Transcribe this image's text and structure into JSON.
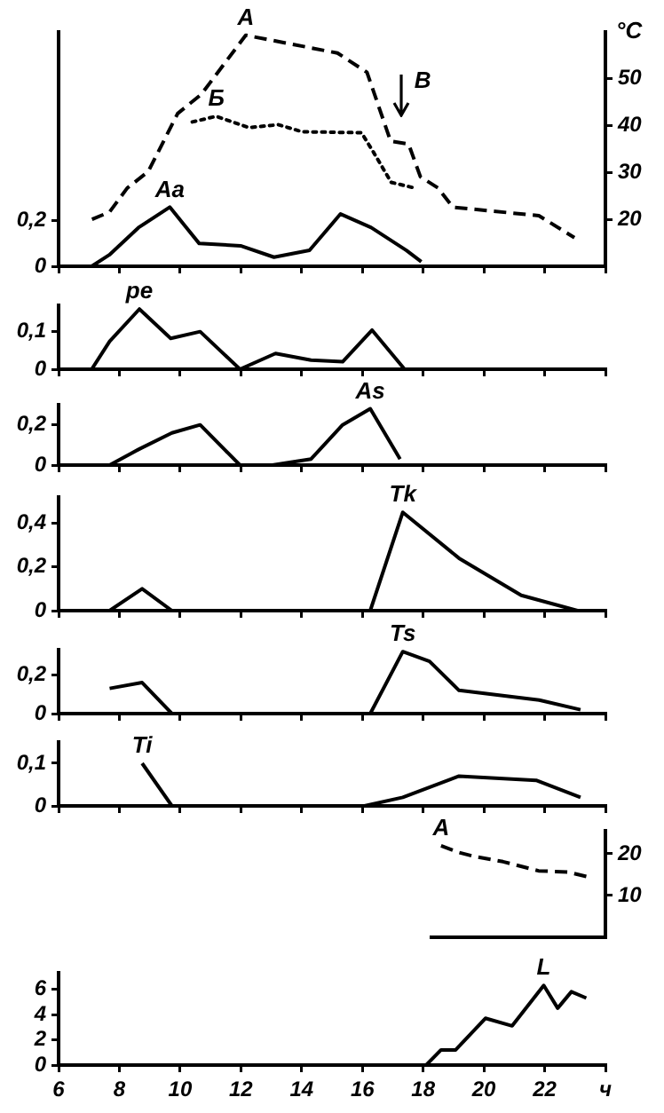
{
  "chart_data": [
    {
      "type": "line",
      "xlim": [
        6,
        24
      ],
      "xticks": [
        {
          "value": 6,
          "label": null
        },
        {
          "value": 8,
          "label": null
        },
        {
          "value": 10,
          "label": null
        },
        {
          "value": 12,
          "label": null
        },
        {
          "value": 14,
          "label": null
        },
        {
          "value": 16,
          "label": null
        },
        {
          "value": 18,
          "label": null
        },
        {
          "value": 20,
          "label": null
        },
        {
          "value": 22,
          "label": null
        },
        {
          "value": 24,
          "label": null
        }
      ],
      "ylim": [
        0,
        1.03
      ],
      "yticks": [
        0,
        {
          "value": 0.2,
          "label": "0,2"
        }
      ],
      "y2lim": [
        10,
        60
      ],
      "y2ticks": [
        20,
        30,
        40,
        50
      ],
      "y2label": "°C",
      "tick_labels": "y",
      "annotations": [
        "В"
      ],
      "series": [
        {
          "name": "A",
          "color": "#000000",
          "axis": "y2",
          "line_style": "dashed",
          "x": [
            7.1,
            7.68,
            8.26,
            8.95,
            9.92,
            10.7,
            12.16,
            15.18,
            16.15,
            16.93,
            17.52,
            17.91,
            18.49,
            18.98,
            21.81,
            22.98
          ],
          "values": [
            20,
            21.6,
            26.7,
            30.2,
            42.6,
            46.7,
            59.3,
            55.5,
            51.4,
            36.7,
            36.1,
            29.1,
            26.7,
            22.6,
            20.8,
            16.1
          ]
        },
        {
          "name": "Б",
          "color": "#000000",
          "axis": "y2",
          "line_style": "dotted",
          "x": [
            10.4,
            11.19,
            12.26,
            13.24,
            14.02,
            15.97,
            16.36,
            16.95,
            17.72
          ],
          "values": [
            40.8,
            42,
            39.6,
            40.2,
            38.7,
            38.5,
            34.4,
            27.9,
            26.7
          ]
        },
        {
          "name": "Aa",
          "color": "#000000",
          "x": [
            7.09,
            7.67,
            8.63,
            9.66,
            10.63,
            11.99,
            13.09,
            14.26,
            15.28,
            16.29,
            17.45,
            17.94
          ],
          "values": [
            0,
            0.05,
            0.17,
            0.26,
            0.1,
            0.09,
            0.04,
            0.07,
            0.23,
            0.17,
            0.07,
            0.02
          ]
        }
      ]
    },
    {
      "type": "line",
      "xlim": [
        6,
        24
      ],
      "xticks": [
        {
          "value": 6,
          "label": null
        },
        {
          "value": 8,
          "label": null
        },
        {
          "value": 10,
          "label": null
        },
        {
          "value": 12,
          "label": null
        },
        {
          "value": 14,
          "label": null
        },
        {
          "value": 16,
          "label": null
        },
        {
          "value": 18,
          "label": null
        },
        {
          "value": 20,
          "label": null
        },
        {
          "value": 22,
          "label": null
        },
        {
          "value": 24,
          "label": null
        }
      ],
      "ylim": [
        0,
        0.17
      ],
      "yticks": [
        0,
        {
          "value": 0.1,
          "label": "0,1"
        }
      ],
      "tick_labels": "y",
      "series": [
        {
          "name": "pe",
          "color": "#000000",
          "x": [
            7.09,
            7.68,
            8.66,
            9.69,
            10.66,
            11.97,
            13.14,
            14.31,
            15.35,
            16.32,
            17.39
          ],
          "values": [
            0,
            0.074,
            0.16,
            0.082,
            0.1,
            0,
            0.042,
            0.024,
            0.02,
            0.104,
            0
          ]
        }
      ]
    },
    {
      "type": "line",
      "xlim": [
        6,
        24
      ],
      "xticks": [
        {
          "value": 6,
          "label": null
        },
        {
          "value": 8,
          "label": null
        },
        {
          "value": 10,
          "label": null
        },
        {
          "value": 12,
          "label": null
        },
        {
          "value": 14,
          "label": null
        },
        {
          "value": 16,
          "label": null
        },
        {
          "value": 18,
          "label": null
        },
        {
          "value": 20,
          "label": null
        },
        {
          "value": 22,
          "label": null
        },
        {
          "value": 24,
          "label": null
        }
      ],
      "ylim": [
        0,
        0.3
      ],
      "yticks": [
        0,
        {
          "value": 0.2,
          "label": "0,2"
        }
      ],
      "tick_labels": "y",
      "series": [
        {
          "name": "As",
          "color": "#000000",
          "x": [
            7.68,
            8.66,
            9.73,
            10.66,
            11.97,
            12.5,
            13.04,
            14.31,
            15.35,
            16.26,
            17.24
          ],
          "values": [
            0,
            0.08,
            0.16,
            0.2,
            0,
            null,
            0,
            0.03,
            0.2,
            0.28,
            0.03
          ]
        }
      ]
    },
    {
      "type": "line",
      "xlim": [
        6,
        24
      ],
      "xticks": [
        {
          "value": 6,
          "label": null
        },
        {
          "value": 8,
          "label": null
        },
        {
          "value": 10,
          "label": null
        },
        {
          "value": 12,
          "label": null
        },
        {
          "value": 14,
          "label": null
        },
        {
          "value": 16,
          "label": null
        },
        {
          "value": 18,
          "label": null
        },
        {
          "value": 20,
          "label": null
        },
        {
          "value": 22,
          "label": null
        },
        {
          "value": 24,
          "label": null
        }
      ],
      "ylim": [
        0,
        0.52
      ],
      "yticks": [
        0,
        {
          "value": 0.2,
          "label": "0,2"
        },
        {
          "value": 0.4,
          "label": "0,4"
        }
      ],
      "tick_labels": "y",
      "series": [
        {
          "name": "Tk",
          "color": "#000000",
          "x": [
            7.68,
            8.75,
            9.73,
            13,
            16.26,
            17.33,
            19.18,
            21.23,
            23.08
          ],
          "values": [
            0,
            0.1,
            0,
            null,
            0,
            0.45,
            0.24,
            0.07,
            0
          ]
        }
      ]
    },
    {
      "type": "line",
      "xlim": [
        6,
        24
      ],
      "xticks": [
        {
          "value": 6,
          "label": null
        },
        {
          "value": 8,
          "label": null
        },
        {
          "value": 10,
          "label": null
        },
        {
          "value": 12,
          "label": null
        },
        {
          "value": 14,
          "label": null
        },
        {
          "value": 16,
          "label": null
        },
        {
          "value": 18,
          "label": null
        },
        {
          "value": 20,
          "label": null
        },
        {
          "value": 22,
          "label": null
        },
        {
          "value": 24,
          "label": null
        }
      ],
      "ylim": [
        0,
        0.33
      ],
      "yticks": [
        0,
        {
          "value": 0.2,
          "label": "0,2"
        }
      ],
      "tick_labels": "y",
      "series": [
        {
          "name": "Ts",
          "color": "#000000",
          "x": [
            7.68,
            8.75,
            9.73,
            13,
            16.26,
            17.33,
            18.21,
            19.18,
            21.82,
            23.18
          ],
          "values": [
            0.13,
            0.16,
            0,
            null,
            0,
            0.32,
            0.27,
            0.12,
            0.07,
            0.02
          ]
        }
      ]
    },
    {
      "type": "line",
      "xlim": [
        6,
        24
      ],
      "xticks": [
        {
          "value": 6,
          "label": null
        },
        {
          "value": 8,
          "label": null
        },
        {
          "value": 10,
          "label": null
        },
        {
          "value": 12,
          "label": null
        },
        {
          "value": 14,
          "label": null
        },
        {
          "value": 16,
          "label": null
        },
        {
          "value": 18,
          "label": null
        },
        {
          "value": 20,
          "label": null
        },
        {
          "value": 22,
          "label": null
        },
        {
          "value": 24,
          "label": null
        }
      ],
      "ylim": [
        0,
        0.15
      ],
      "yticks": [
        0,
        {
          "value": 0.1,
          "label": "0,1"
        }
      ],
      "tick_labels": "y",
      "series": [
        {
          "name": "Ti",
          "color": "#000000",
          "x": [
            8.75,
            9.73,
            13,
            16.07,
            17.33,
            19.18,
            21.72,
            23.18
          ],
          "values": [
            0.1,
            0,
            null,
            0,
            0.02,
            0.07,
            0.06,
            0.02
          ]
        }
      ]
    },
    {
      "type": "line",
      "xlim": [
        6,
        24
      ],
      "ylim": [
        0,
        25.5
      ],
      "yticks": [
        10,
        20
      ],
      "tick_labels": "y",
      "series": [
        {
          "name": "A",
          "color": "#000000",
          "line_style": "dashed",
          "x": [
            18.59,
            19.18,
            19.66,
            20.63,
            21.8,
            22.78,
            23.46
          ],
          "values": [
            21.9,
            20.3,
            19.4,
            18.1,
            15.9,
            15.6,
            14.4
          ]
        }
      ]
    },
    {
      "type": "line",
      "xlim": [
        6,
        24
      ],
      "xticks": [
        6,
        8,
        10,
        12,
        14,
        16,
        18,
        20,
        22,
        {
          "value": 24,
          "label": "ч"
        }
      ],
      "ylim": [
        0,
        7.3
      ],
      "yticks": [
        0,
        2,
        4,
        6
      ],
      "series": [
        {
          "name": "L",
          "color": "#000000",
          "x": [
            18.1,
            18.59,
            19.07,
            20.05,
            20.93,
            21.97,
            22.43,
            22.88,
            23.37
          ],
          "values": [
            0,
            1.2,
            1.2,
            3.7,
            3.1,
            6.3,
            4.5,
            5.8,
            5.3
          ]
        }
      ]
    }
  ]
}
